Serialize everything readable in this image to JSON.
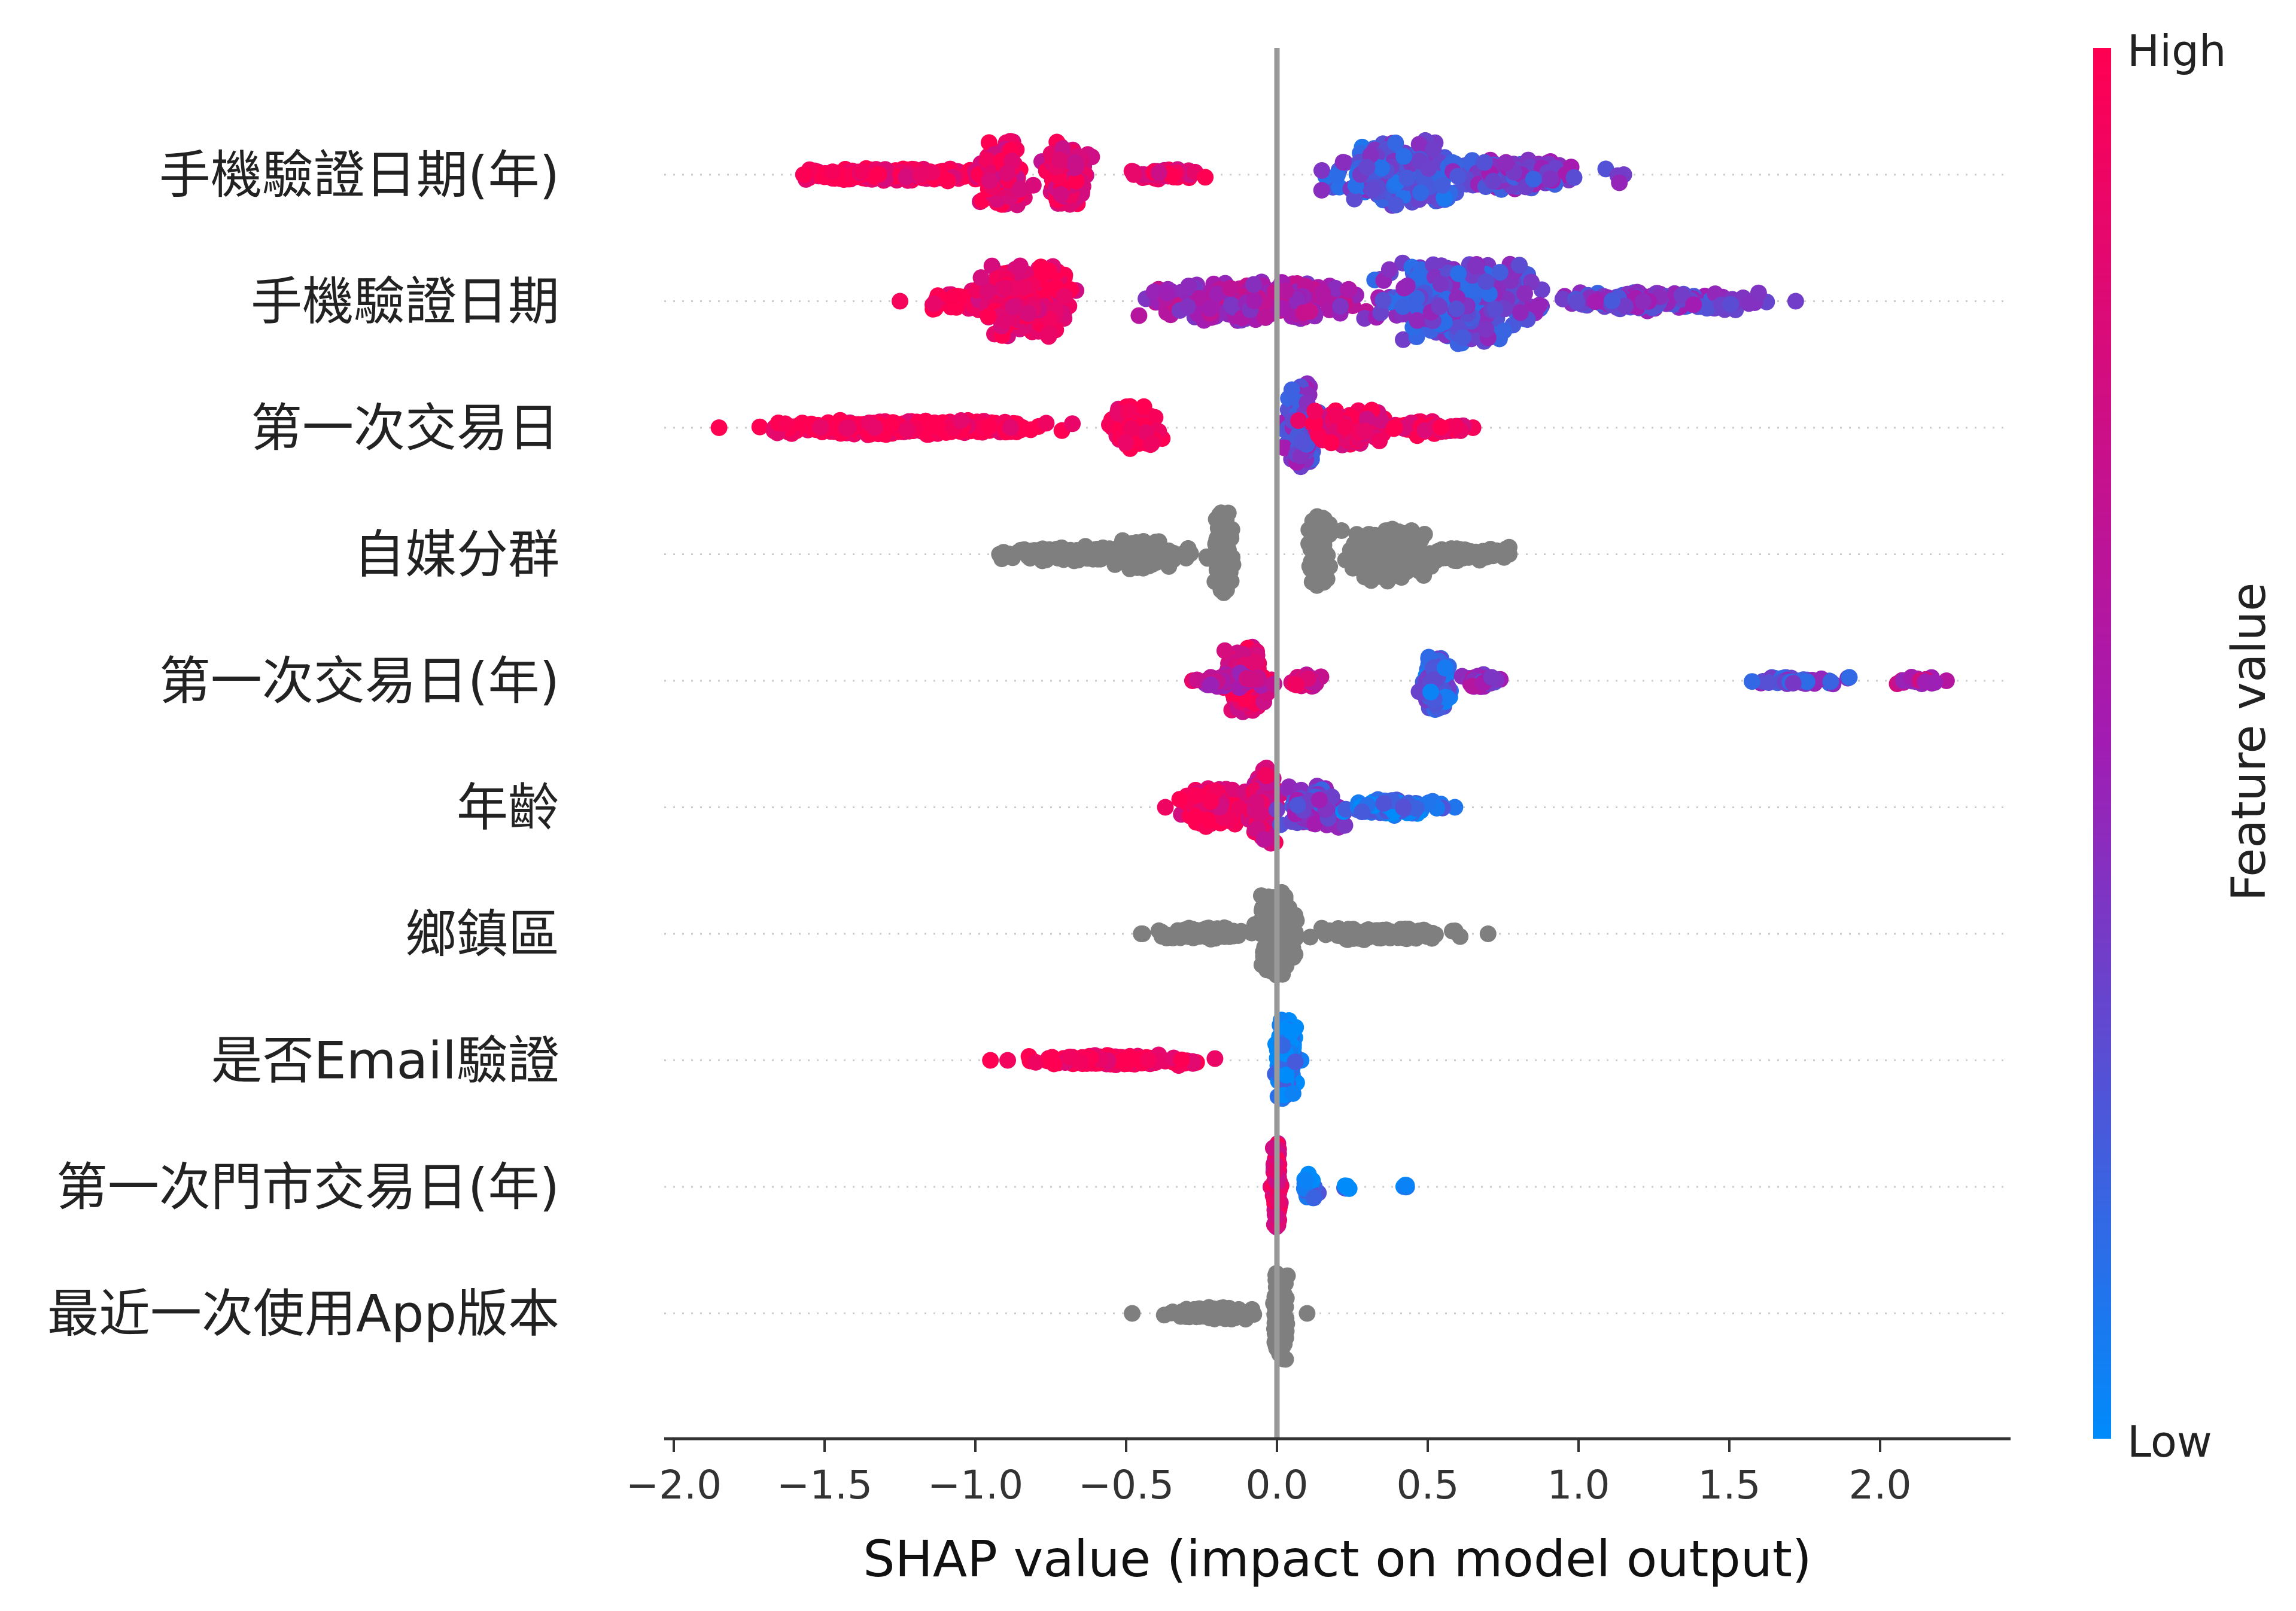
{
  "chart_data": {
    "type": "scatter",
    "subtype": "shap-beeswarm-summary",
    "title": "",
    "xlabel": "SHAP value (impact on model output)",
    "xlim": [
      -2.05,
      2.4
    ],
    "xticks": [
      -2.0,
      -1.5,
      -1.0,
      -0.5,
      0.0,
      0.5,
      1.0,
      1.5,
      2.0
    ],
    "xtick_labels": [
      "−2.0",
      "−1.5",
      "−1.0",
      "−0.5",
      "0.0",
      "0.5",
      "1.0",
      "1.5",
      "2.0"
    ],
    "zero_line": 0.0,
    "row_gridlines": "dotted",
    "colors": {
      "high": "#ff0d57",
      "low": "#1e88e5",
      "mid": "#a21cb3",
      "neutral": "#808080",
      "zero_line": "#999999",
      "axis": "#333333"
    },
    "colorbar": {
      "title": "Feature value",
      "high_label": "High",
      "low_label": "Low",
      "position": "right"
    },
    "features": [
      {
        "name": "手機驗證日期(年)",
        "colored": true,
        "xrange": [
          -1.57,
          1.15
        ],
        "clusters": [
          {
            "x": -1.28,
            "spread": 0.28,
            "count": 260,
            "height": 0.12,
            "color": 0.95
          },
          {
            "x": -0.91,
            "spread": 0.06,
            "count": 170,
            "height": 0.62,
            "color": 0.88
          },
          {
            "x": -0.7,
            "spread": 0.06,
            "count": 180,
            "height": 0.62,
            "color": 0.85
          },
          {
            "x": -0.38,
            "spread": 0.1,
            "count": 60,
            "height": 0.1,
            "color": 0.9
          },
          {
            "x": 0.4,
            "spread": 0.18,
            "count": 300,
            "height": 0.62,
            "color": 0.25
          },
          {
            "x": 0.8,
            "spread": 0.2,
            "count": 180,
            "height": 0.3,
            "color": 0.35
          }
        ]
      },
      {
        "name": "手機驗證日期",
        "colored": true,
        "xrange": [
          -1.25,
          1.72
        ],
        "clusters": [
          {
            "x": -1.05,
            "spread": 0.12,
            "count": 60,
            "height": 0.2,
            "color": 0.95
          },
          {
            "x": -0.83,
            "spread": 0.14,
            "count": 300,
            "height": 0.7,
            "color": 0.92
          },
          {
            "x": -0.05,
            "spread": 0.3,
            "count": 300,
            "height": 0.38,
            "color": 0.55
          },
          {
            "x": 0.6,
            "spread": 0.2,
            "count": 380,
            "height": 0.78,
            "color": 0.3
          },
          {
            "x": 1.25,
            "spread": 0.28,
            "count": 200,
            "height": 0.18,
            "color": 0.35
          }
        ]
      },
      {
        "name": "第一次交易日",
        "colored": true,
        "xrange": [
          -1.85,
          0.65
        ],
        "clusters": [
          {
            "x": -1.25,
            "spread": 0.4,
            "count": 360,
            "height": 0.14,
            "color": 1.0
          },
          {
            "x": -0.48,
            "spread": 0.07,
            "count": 160,
            "height": 0.42,
            "color": 0.98
          },
          {
            "x": 0.08,
            "spread": 0.04,
            "count": 200,
            "height": 0.8,
            "color": 0.35
          },
          {
            "x": 0.25,
            "spread": 0.12,
            "count": 150,
            "height": 0.35,
            "color": 0.9
          },
          {
            "x": 0.5,
            "spread": 0.1,
            "count": 60,
            "height": 0.12,
            "color": 0.95
          }
        ]
      },
      {
        "name": "自媒分群",
        "colored": false,
        "xrange": [
          -0.92,
          0.77
        ],
        "clusters": [
          {
            "x": -0.55,
            "spread": 0.3,
            "count": 220,
            "height": 0.14,
            "color": 0.5
          },
          {
            "x": -0.45,
            "spread": 0.08,
            "count": 120,
            "height": 0.3,
            "color": 0.5
          },
          {
            "x": -0.18,
            "spread": 0.03,
            "count": 140,
            "height": 0.78,
            "color": 0.5
          },
          {
            "x": 0.14,
            "spread": 0.03,
            "count": 140,
            "height": 0.78,
            "color": 0.5
          },
          {
            "x": 0.36,
            "spread": 0.1,
            "count": 220,
            "height": 0.5,
            "color": 0.5
          },
          {
            "x": 0.62,
            "spread": 0.12,
            "count": 80,
            "height": 0.14,
            "color": 0.5
          }
        ]
      },
      {
        "name": "第一次交易日(年)",
        "colored": true,
        "xrange": [
          -0.28,
          2.22
        ],
        "clusters": [
          {
            "x": -0.1,
            "spread": 0.06,
            "count": 200,
            "height": 0.62,
            "color": 0.88
          },
          {
            "x": -0.15,
            "spread": 0.1,
            "count": 60,
            "height": 0.15,
            "color": 0.6
          },
          {
            "x": 0.1,
            "spread": 0.04,
            "count": 40,
            "height": 0.12,
            "color": 0.75
          },
          {
            "x": 0.53,
            "spread": 0.04,
            "count": 140,
            "height": 0.55,
            "color": 0.2
          },
          {
            "x": 0.68,
            "spread": 0.05,
            "count": 40,
            "height": 0.12,
            "color": 0.45
          },
          {
            "x": 1.75,
            "spread": 0.12,
            "count": 50,
            "height": 0.08,
            "color": 0.3
          },
          {
            "x": 2.12,
            "spread": 0.07,
            "count": 25,
            "height": 0.08,
            "color": 0.6
          }
        ]
      },
      {
        "name": "年齡",
        "colored": true,
        "xrange": [
          -0.37,
          0.59
        ],
        "clusters": [
          {
            "x": -0.2,
            "spread": 0.1,
            "count": 180,
            "height": 0.35,
            "color": 0.92
          },
          {
            "x": -0.04,
            "spread": 0.04,
            "count": 160,
            "height": 0.75,
            "color": 0.8
          },
          {
            "x": 0.12,
            "spread": 0.08,
            "count": 140,
            "height": 0.4,
            "color": 0.35
          },
          {
            "x": 0.38,
            "spread": 0.12,
            "count": 160,
            "height": 0.15,
            "color": 0.1
          }
        ]
      },
      {
        "name": "鄉鎮區",
        "colored": false,
        "xrange": [
          -0.45,
          0.7
        ],
        "clusters": [
          {
            "x": -0.25,
            "spread": 0.14,
            "count": 120,
            "height": 0.12,
            "color": 0.5
          },
          {
            "x": 0.0,
            "spread": 0.05,
            "count": 260,
            "height": 0.8,
            "color": 0.5
          },
          {
            "x": 0.35,
            "spread": 0.2,
            "count": 140,
            "height": 0.12,
            "color": 0.5
          }
        ]
      },
      {
        "name": "是否Email驗證",
        "colored": true,
        "xrange": [
          -0.95,
          0.08
        ],
        "clusters": [
          {
            "x": -0.55,
            "spread": 0.24,
            "count": 220,
            "height": 0.1,
            "color": 1.0
          },
          {
            "x": 0.03,
            "spread": 0.025,
            "count": 260,
            "height": 0.78,
            "color": 0.05
          }
        ]
      },
      {
        "name": "第一次門市交易日(年)",
        "colored": true,
        "xrange": [
          -0.02,
          0.43
        ],
        "clusters": [
          {
            "x": 0.0,
            "spread": 0.01,
            "count": 160,
            "height": 0.8,
            "color": 0.85
          },
          {
            "x": 0.11,
            "spread": 0.03,
            "count": 30,
            "height": 0.3,
            "color": 0.1
          },
          {
            "x": 0.23,
            "spread": 0.01,
            "count": 6,
            "height": 0.05,
            "color": 0.1
          },
          {
            "x": 0.43,
            "spread": 0.01,
            "count": 5,
            "height": 0.05,
            "color": 0.1
          }
        ]
      },
      {
        "name": "最近一次使用App版本",
        "colored": false,
        "xrange": [
          -0.48,
          0.1
        ],
        "clusters": [
          {
            "x": -0.22,
            "spread": 0.12,
            "count": 160,
            "height": 0.12,
            "color": 0.5
          },
          {
            "x": 0.01,
            "spread": 0.02,
            "count": 180,
            "height": 0.82,
            "color": 0.5
          }
        ]
      }
    ]
  }
}
